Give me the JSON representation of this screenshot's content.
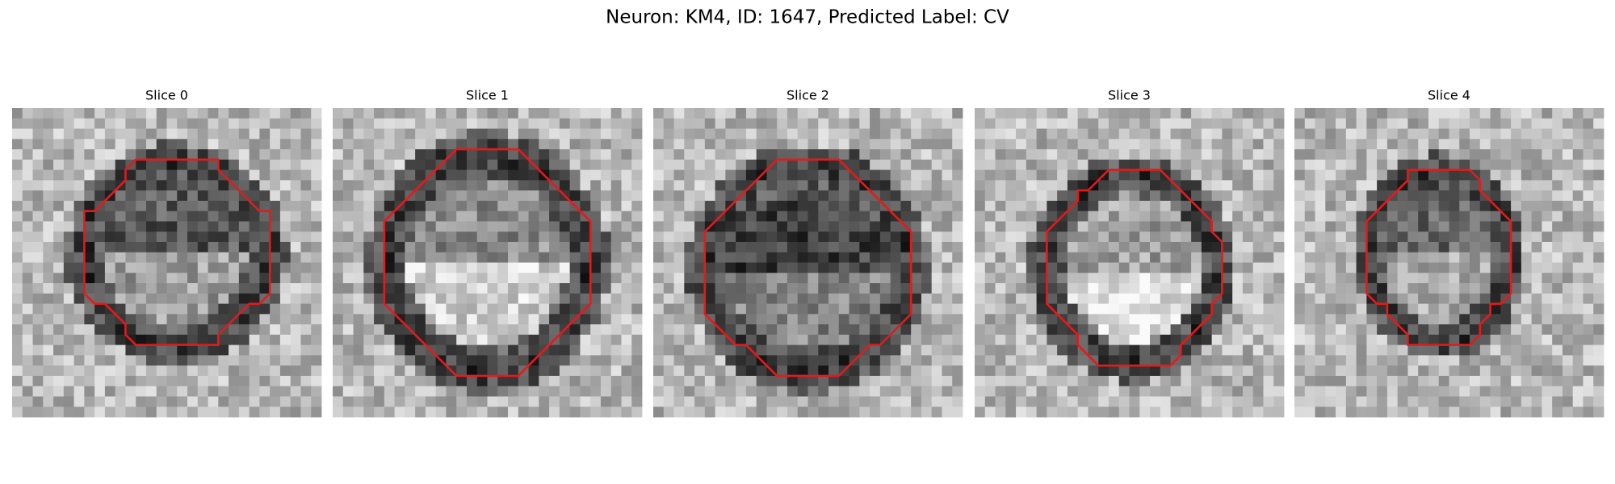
{
  "title": "Neuron: KM4, ID: 1647, Predicted Label: CV",
  "panels": [
    {
      "title": "Slice 0"
    },
    {
      "title": "Slice 1"
    },
    {
      "title": "Slice 2"
    },
    {
      "title": "Slice 3"
    },
    {
      "title": "Slice 4"
    }
  ]
}
